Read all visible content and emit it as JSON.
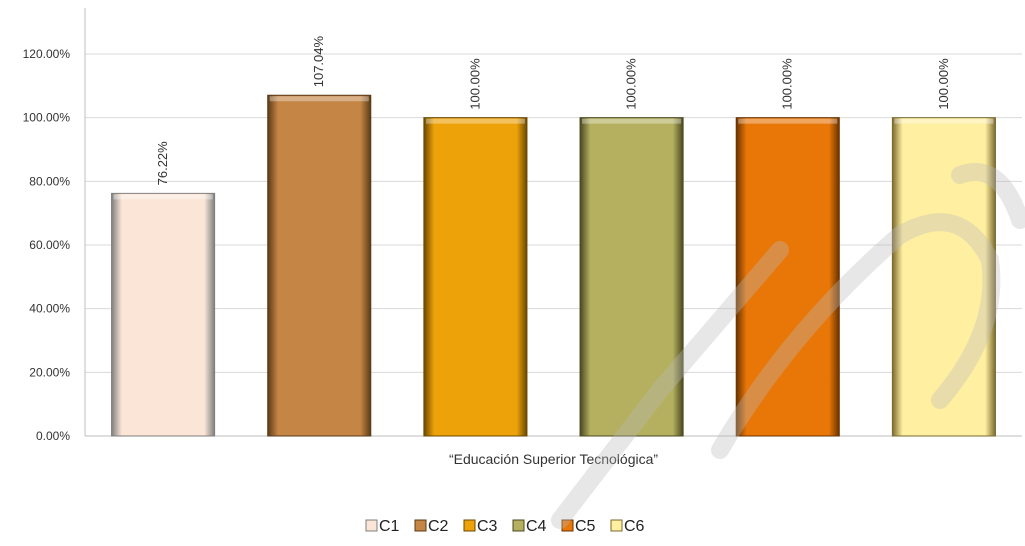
{
  "chart_data": {
    "type": "bar",
    "categories": [
      "“Educación Superior Tecnológica”"
    ],
    "series": [
      {
        "name": "C1",
        "values": [
          76.22
        ],
        "label": "76.22%",
        "color": "#FBE5D6",
        "edge": "#7F7F7F"
      },
      {
        "name": "C2",
        "values": [
          107.04
        ],
        "label": "107.04%",
        "color": "#C48545",
        "edge": "#5A3A18"
      },
      {
        "name": "C3",
        "values": [
          100.0
        ],
        "label": "100.00%",
        "color": "#EDA20A",
        "edge": "#6A4800"
      },
      {
        "name": "C4",
        "values": [
          100.0
        ],
        "label": "100.00%",
        "color": "#B4B060",
        "edge": "#4A4820"
      },
      {
        "name": "C5",
        "values": [
          100.0
        ],
        "label": "100.00%",
        "color": "#E87708",
        "edge": "#6A3300"
      },
      {
        "name": "C6",
        "values": [
          100.0
        ],
        "label": "100.00%",
        "color": "#FFEFA1",
        "edge": "#7A6A30"
      }
    ],
    "yticks": [
      "0.00%",
      "20.00%",
      "40.00%",
      "60.00%",
      "80.00%",
      "100.00%",
      "120.00%"
    ],
    "ylim": [
      0,
      120
    ],
    "grid": true,
    "legend_position": "bottom",
    "colors": {
      "grid": "#D9D9D9",
      "axis": "#BFBFBF"
    }
  }
}
